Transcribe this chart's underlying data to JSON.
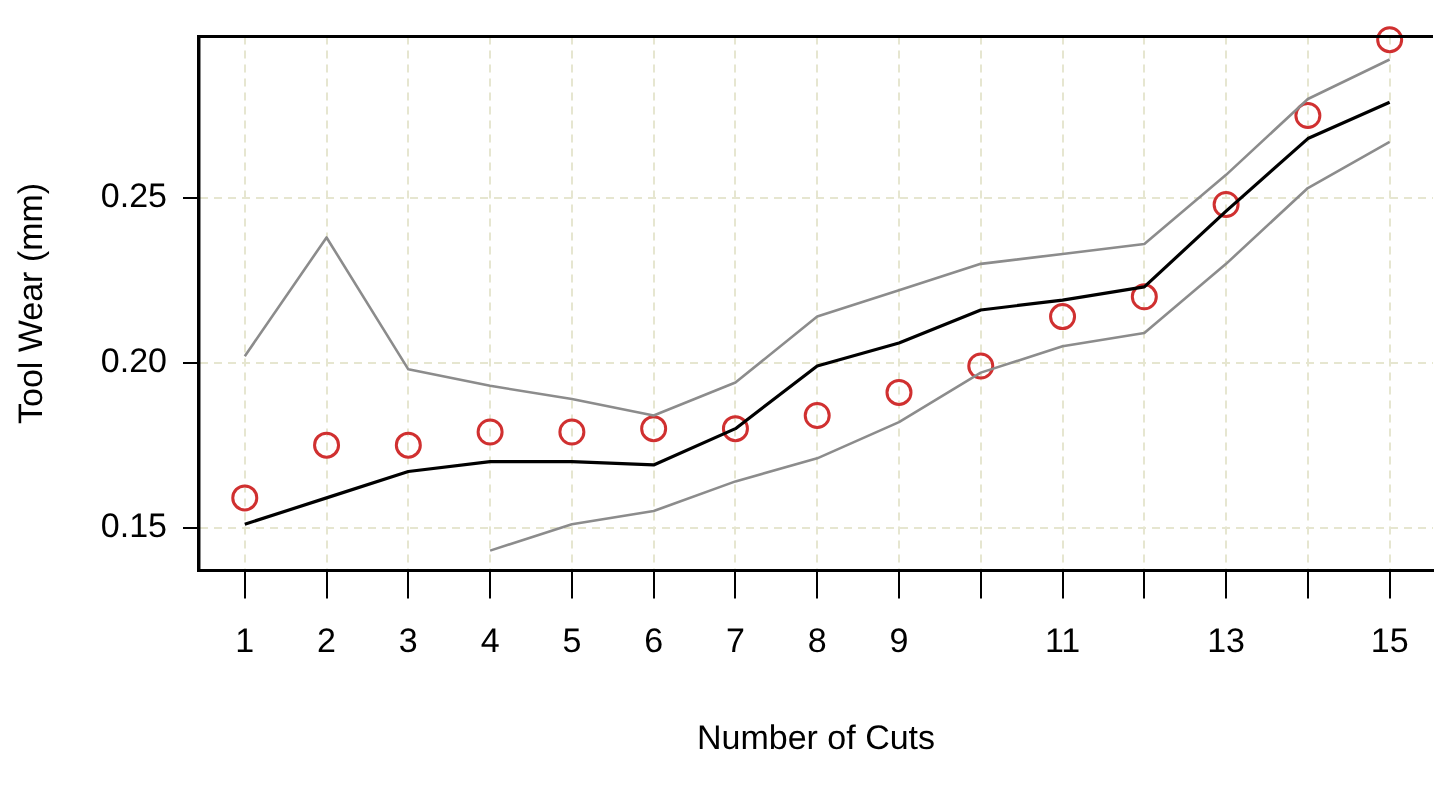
{
  "chart_data": {
    "type": "line",
    "xlabel": "Number of Cuts",
    "ylabel": "Tool Wear (mm)",
    "x": [
      1,
      2,
      3,
      4,
      5,
      6,
      7,
      8,
      9,
      10,
      11,
      12,
      13,
      14,
      15
    ],
    "xlim": [
      0.44,
      15.53
    ],
    "ylim": [
      0.137,
      0.299
    ],
    "xticks": [
      1,
      2,
      3,
      4,
      5,
      6,
      7,
      8,
      9,
      {
        "value": 10,
        "label": null
      },
      11,
      {
        "value": 12,
        "label": null
      },
      13,
      {
        "value": 14,
        "label": null
      },
      15
    ],
    "yticks": [
      0.15,
      {
        "value": 0.2,
        "label": "0.20"
      },
      0.25
    ],
    "grid": true,
    "legend": false,
    "line_style": "solid",
    "series": [
      {
        "color": "#8c8c8c",
        "values": [
          0.202,
          0.238,
          0.198,
          0.193,
          0.189,
          0.184,
          0.194,
          0.214,
          0.222,
          0.23,
          0.233,
          0.236,
          0.257,
          0.28,
          0.292
        ]
      },
      {
        "color": "#000000",
        "values": [
          0.151,
          0.159,
          0.167,
          0.17,
          0.17,
          0.169,
          0.18,
          0.199,
          0.206,
          0.216,
          0.219,
          0.223,
          0.246,
          0.268,
          0.279
        ]
      },
      {
        "color": "#8c8c8c",
        "values": [
          null,
          null,
          null,
          0.143,
          0.151,
          0.155,
          0.164,
          0.171,
          0.182,
          0.197,
          0.205,
          0.209,
          0.23,
          0.253,
          0.267
        ]
      },
      {
        "type": "scatter",
        "color": "#d03030",
        "marker": "circle",
        "values": [
          0.159,
          0.175,
          0.175,
          0.179,
          0.179,
          0.18,
          0.18,
          0.184,
          0.191,
          0.199,
          0.214,
          0.22,
          0.248,
          0.275,
          0.298
        ]
      }
    ]
  }
}
